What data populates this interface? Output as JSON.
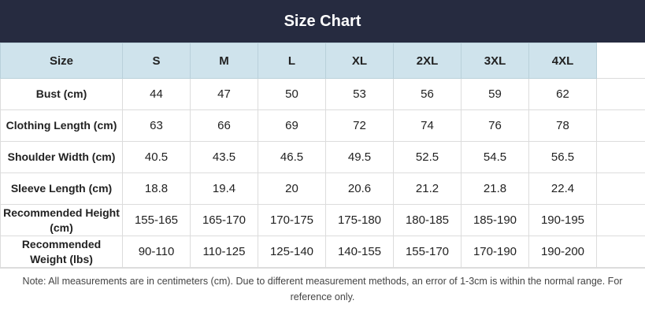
{
  "header": {
    "title": "Size Chart"
  },
  "table": {
    "columns": [
      "Size",
      "S",
      "M",
      "L",
      "XL",
      "2XL",
      "3XL",
      "4XL"
    ],
    "rows": [
      [
        "Bust (cm)",
        "44",
        "47",
        "50",
        "53",
        "56",
        "59",
        "62"
      ],
      [
        "Clothing Length (cm)",
        "63",
        "66",
        "69",
        "72",
        "74",
        "76",
        "78"
      ],
      [
        "Shoulder Width (cm)",
        "40.5",
        "43.5",
        "46.5",
        "49.5",
        "52.5",
        "54.5",
        "56.5"
      ],
      [
        "Sleeve Length (cm)",
        "18.8",
        "19.4",
        "20",
        "20.6",
        "21.2",
        "21.8",
        "22.4"
      ],
      [
        "Recommended Height (cm)",
        "155-165",
        "165-170",
        "170-175",
        "175-180",
        "180-185",
        "185-190",
        "190-195"
      ],
      [
        "Recommended Weight (lbs)",
        "90-110",
        "110-125",
        "125-140",
        "140-155",
        "155-170",
        "170-190",
        "190-200"
      ]
    ]
  },
  "note": "Note: All measurements are in centimeters (cm). Due to different measurement methods, an error of 1-3cm is within the normal range. For reference only."
}
